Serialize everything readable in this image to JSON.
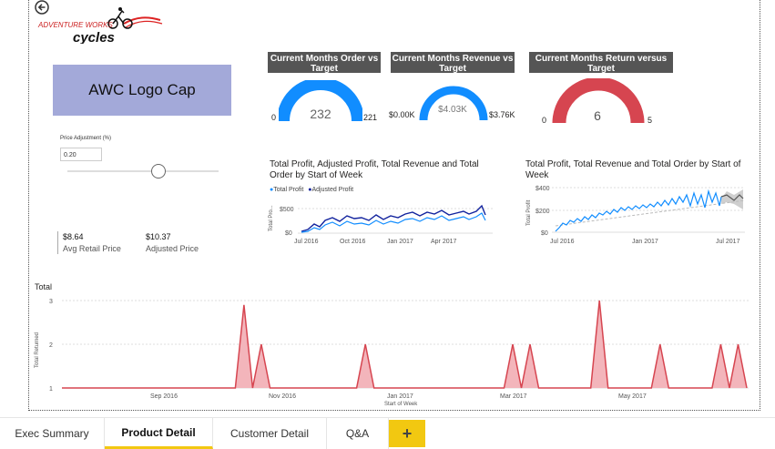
{
  "app": {
    "back_label": "Back"
  },
  "logo": {
    "text_line1": "ADVENTURE WORKS",
    "text_line2": "cycles"
  },
  "product": {
    "name": "AWC Logo Cap"
  },
  "kpis": [
    {
      "title": "Current Months Order vs Target",
      "min": "0",
      "max": "221",
      "value": "232",
      "fill": 1.0,
      "color": "#118dff"
    },
    {
      "title": "Current Months Revenue vs Target",
      "min": "$0.00K",
      "max": "$3.76K",
      "value": "$4.03K",
      "fill": 1.0,
      "color": "#118dff"
    },
    {
      "title": "Current Months Return versus Target",
      "min": "0",
      "max": "5",
      "value": "6",
      "fill": 1.0,
      "color": "#d64550"
    }
  ],
  "slicer": {
    "title": "Price Adjustment (%)",
    "value": "0.20",
    "slider_fraction": 0.6
  },
  "prices": {
    "avg_retail_value": "$8.64",
    "avg_retail_label": "Avg Retail Price",
    "adjusted_value": "$10.37",
    "adjusted_label": "Adjusted Price"
  },
  "chart_profit": {
    "title": "Total Profit, Adjusted Profit, Total Revenue and Total Order by Start of Week",
    "legend": [
      "Total Profit",
      "Adjusted Profit"
    ],
    "ylabel": "Total Pro...",
    "yticks": [
      "$500",
      "$0"
    ],
    "xticks": [
      "Jul 2016",
      "Oct 2016",
      "Jan 2017",
      "Apr 2017"
    ]
  },
  "chart_revenue": {
    "title": "Total Profit, Total Revenue and Total Order by Start of Week",
    "ylabel": "Total Profit",
    "yticks": [
      "$400",
      "$200",
      "$0"
    ],
    "xticks": [
      "Jul 2016",
      "Jan 2017",
      "Jul 2017"
    ]
  },
  "chart_data": {
    "type": "area",
    "title": "Total",
    "ylabel": "Total Returned",
    "xlabel": "Start of Week",
    "ylim": [
      1,
      3
    ],
    "yticks": [
      "3",
      "2",
      "1"
    ],
    "xticks": [
      "Sep 2016",
      "Nov 2016",
      "Jan 2017",
      "Mar 2017",
      "May 2017"
    ],
    "series": [
      {
        "name": "Total Returned",
        "values": [
          1,
          1,
          1,
          1,
          1,
          1,
          1,
          1,
          1,
          1,
          1,
          1,
          1,
          1,
          1,
          1,
          1,
          1,
          1,
          1,
          1,
          2.9,
          1,
          2,
          1,
          1,
          1,
          1,
          1,
          1,
          1,
          1,
          1,
          1,
          1,
          2,
          1,
          1,
          1,
          1,
          1,
          1,
          1,
          1,
          1,
          1,
          1,
          1,
          1,
          1,
          1,
          1,
          2,
          1,
          2,
          1,
          1,
          1,
          1,
          1,
          1,
          1,
          3,
          1,
          1,
          1,
          1,
          1,
          1,
          2,
          1,
          1,
          1,
          1,
          1,
          1,
          2,
          1,
          2,
          1
        ]
      }
    ]
  },
  "tabs": [
    {
      "label": "Exec Summary"
    },
    {
      "label": "Product Detail"
    },
    {
      "label": "Customer Detail"
    },
    {
      "label": "Q&A"
    }
  ],
  "add_tab": {
    "label": "+"
  },
  "colors": {
    "accent": "#f2c811",
    "blue": "#118dff",
    "dark_blue": "#12239e",
    "red": "#d64550"
  }
}
